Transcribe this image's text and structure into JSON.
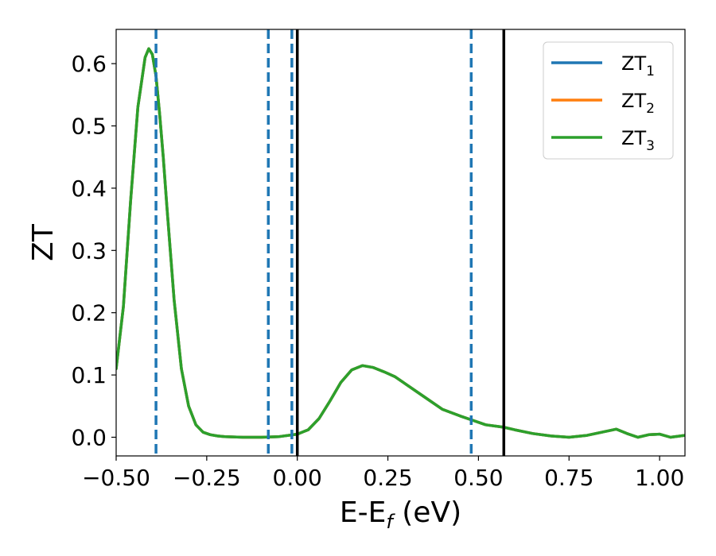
{
  "chart_data": {
    "type": "line",
    "xlabel": "E-E",
    "xlabel_sub": "f",
    "xlabel_unit": " (eV)",
    "ylabel": "ZT",
    "xlim": [
      -0.5,
      1.07
    ],
    "ylim": [
      -0.03,
      0.655
    ],
    "x_ticks": [
      -0.5,
      -0.25,
      0.0,
      0.25,
      0.5,
      0.75,
      1.0
    ],
    "x_tick_labels": [
      "−0.50",
      "−0.25",
      "0.00",
      "0.25",
      "0.50",
      "0.75",
      "1.00"
    ],
    "y_ticks": [
      0.0,
      0.1,
      0.2,
      0.3,
      0.4,
      0.5,
      0.6
    ],
    "y_tick_labels": [
      "0.0",
      "0.1",
      "0.2",
      "0.3",
      "0.4",
      "0.5",
      "0.6"
    ],
    "grid": false,
    "legend_position": "top-right",
    "x": [
      -0.5,
      -0.48,
      -0.46,
      -0.44,
      -0.42,
      -0.41,
      -0.4,
      -0.39,
      -0.38,
      -0.37,
      -0.36,
      -0.34,
      -0.32,
      -0.3,
      -0.28,
      -0.26,
      -0.24,
      -0.22,
      -0.2,
      -0.15,
      -0.1,
      -0.05,
      0.0,
      0.03,
      0.06,
      0.09,
      0.12,
      0.15,
      0.18,
      0.21,
      0.24,
      0.27,
      0.3,
      0.35,
      0.4,
      0.45,
      0.48,
      0.52,
      0.57,
      0.6,
      0.65,
      0.7,
      0.75,
      0.8,
      0.84,
      0.88,
      0.91,
      0.94,
      0.97,
      1.0,
      1.03,
      1.07
    ],
    "series": [
      {
        "name": "ZT",
        "sub": "1",
        "color": "#1f77b4",
        "values": [
          0.11,
          0.21,
          0.38,
          0.53,
          0.61,
          0.624,
          0.615,
          0.58,
          0.52,
          0.45,
          0.37,
          0.22,
          0.11,
          0.05,
          0.02,
          0.008,
          0.004,
          0.002,
          0.001,
          0.0,
          0.0,
          0.001,
          0.005,
          0.012,
          0.03,
          0.058,
          0.088,
          0.108,
          0.115,
          0.112,
          0.105,
          0.097,
          0.085,
          0.065,
          0.045,
          0.034,
          0.028,
          0.02,
          0.016,
          0.012,
          0.006,
          0.002,
          0.0,
          0.003,
          0.008,
          0.013,
          0.006,
          0.0,
          0.004,
          0.005,
          0.0,
          0.003
        ]
      },
      {
        "name": "ZT",
        "sub": "2",
        "color": "#ff7f0e",
        "values": [
          0.11,
          0.21,
          0.38,
          0.53,
          0.61,
          0.624,
          0.615,
          0.58,
          0.52,
          0.45,
          0.37,
          0.22,
          0.11,
          0.05,
          0.02,
          0.008,
          0.004,
          0.002,
          0.001,
          0.0,
          0.0,
          0.001,
          0.005,
          0.012,
          0.03,
          0.058,
          0.088,
          0.108,
          0.115,
          0.112,
          0.105,
          0.097,
          0.085,
          0.065,
          0.045,
          0.034,
          0.028,
          0.02,
          0.016,
          0.012,
          0.006,
          0.002,
          0.0,
          0.003,
          0.008,
          0.013,
          0.006,
          0.0,
          0.004,
          0.005,
          0.0,
          0.003
        ]
      },
      {
        "name": "ZT",
        "sub": "3",
        "color": "#2ca02c",
        "values": [
          0.11,
          0.21,
          0.38,
          0.53,
          0.61,
          0.624,
          0.615,
          0.58,
          0.52,
          0.45,
          0.37,
          0.22,
          0.11,
          0.05,
          0.02,
          0.008,
          0.004,
          0.002,
          0.001,
          0.0,
          0.0,
          0.001,
          0.005,
          0.012,
          0.03,
          0.058,
          0.088,
          0.108,
          0.115,
          0.112,
          0.105,
          0.097,
          0.085,
          0.065,
          0.045,
          0.034,
          0.028,
          0.02,
          0.016,
          0.012,
          0.006,
          0.002,
          0.0,
          0.003,
          0.008,
          0.013,
          0.006,
          0.0,
          0.004,
          0.005,
          0.0,
          0.003
        ]
      }
    ],
    "vlines_dashed": {
      "color": "#1f77b4",
      "x": [
        -0.39,
        -0.08,
        -0.015,
        0.48
      ]
    },
    "vlines_solid": {
      "color": "#000000",
      "x": [
        0.0,
        0.57
      ]
    }
  }
}
